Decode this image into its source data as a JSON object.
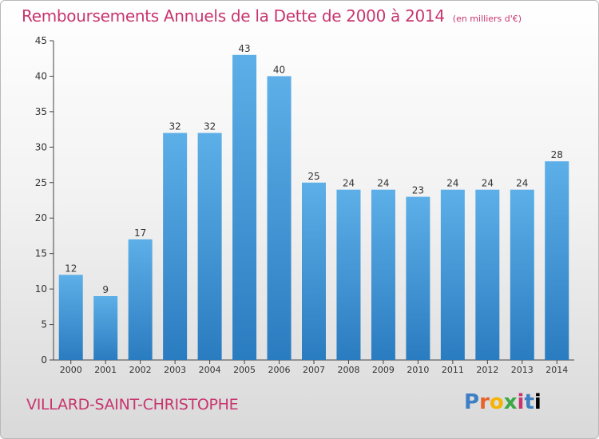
{
  "header": {
    "title": "Remboursements Annuels de la Dette de 2000 à 2014",
    "unit": "(en milliers d'€)"
  },
  "footer": {
    "commune": "VILLARD-SAINT-CHRISTOPHE",
    "logo": [
      "P",
      "r",
      "o",
      "x",
      "i",
      "t",
      "i"
    ]
  },
  "colors": {
    "title": "#c8356e",
    "bar_light": "#5dafe8",
    "bar_dark": "#2a7cc0",
    "axis": "#333333"
  },
  "chart_data": {
    "type": "bar",
    "categories": [
      "2000",
      "2001",
      "2002",
      "2003",
      "2004",
      "2005",
      "2006",
      "2007",
      "2008",
      "2009",
      "2010",
      "2011",
      "2012",
      "2013",
      "2014"
    ],
    "values": [
      12,
      9,
      17,
      32,
      32,
      43,
      40,
      25,
      24,
      24,
      23,
      24,
      24,
      24,
      28
    ],
    "ylim": [
      0,
      45
    ],
    "yticks": [
      0,
      5,
      10,
      15,
      20,
      25,
      30,
      35,
      40,
      45
    ],
    "grid": false,
    "data_labels": true
  }
}
